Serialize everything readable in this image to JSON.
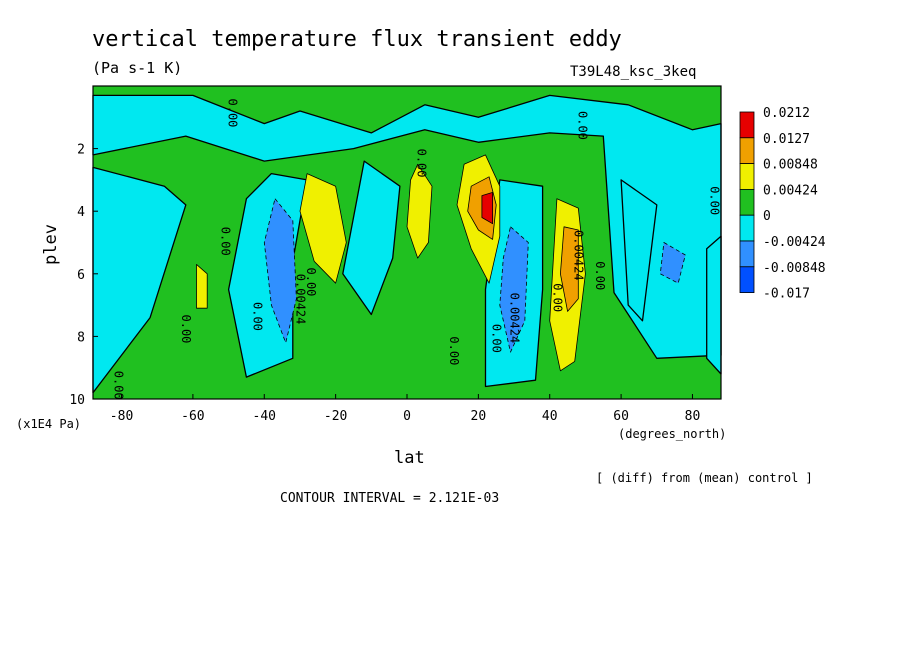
{
  "chart_data": {
    "type": "heatmap",
    "title": "vertical temperature flux transient eddy",
    "units": "(Pa s-1 K)",
    "run_label": "T39L48_ksc_3keq",
    "xlabel": "lat",
    "x_units": "(degrees_north)",
    "ylabel": "plev",
    "y_units": "(x1E4 Pa)",
    "x_ticks": [
      "-80",
      "-60",
      "-40",
      "-20",
      "0",
      "20",
      "40",
      "60",
      "80"
    ],
    "y_ticks": [
      "2",
      "4",
      "6",
      "8",
      "10"
    ],
    "xlim": [
      -88,
      88
    ],
    "ylim": [
      10,
      0
    ],
    "legend": {
      "levels": [
        "0.0212",
        "0.0127",
        "0.00848",
        "0.00424",
        "0",
        "-0.00424",
        "-0.00848",
        "-0.017"
      ],
      "colors": [
        "#e60000",
        "#f0a000",
        "#f0f000",
        "#20c020",
        "#00e8f0",
        "#3090ff",
        "#0050ff"
      ]
    },
    "contour_labels": [
      {
        "text": "0.00",
        "lat": -50,
        "plev": 0.4
      },
      {
        "text": "0.00",
        "lat": 48,
        "plev": 0.8
      },
      {
        "text": "0.00",
        "lat": 3,
        "plev": 2.0
      },
      {
        "text": "0.00",
        "lat": 85,
        "plev": 3.2
      },
      {
        "text": "0.00",
        "lat": -52,
        "plev": 4.5
      },
      {
        "text": "0.00424",
        "lat": -31,
        "plev": 6.0
      },
      {
        "text": "0.00",
        "lat": -28,
        "plev": 5.8
      },
      {
        "text": "0.00",
        "lat": -43,
        "plev": 6.9
      },
      {
        "text": "0.00",
        "lat": -63,
        "plev": 7.3
      },
      {
        "text": "0.00",
        "lat": -82,
        "plev": 9.1
      },
      {
        "text": "0.00",
        "lat": 41,
        "plev": 6.3
      },
      {
        "text": "0.00424",
        "lat": 29,
        "plev": 6.6
      },
      {
        "text": "0.00",
        "lat": 24,
        "plev": 7.6
      },
      {
        "text": "0.00",
        "lat": 12,
        "plev": 8.0
      },
      {
        "text": "0.00424",
        "lat": 47,
        "plev": 4.6
      },
      {
        "text": "0.00",
        "lat": 53,
        "plev": 5.6
      }
    ],
    "regions": [
      {
        "level": 5,
        "lon": [
          [
            -88,
            0.3
          ],
          [
            -60,
            0.3
          ],
          [
            -40,
            1.2
          ],
          [
            -30,
            0.8
          ],
          [
            -10,
            1.5
          ],
          [
            5,
            0.6
          ],
          [
            20,
            1.0
          ],
          [
            40,
            0.3
          ],
          [
            62,
            0.6
          ],
          [
            80,
            1.4
          ],
          [
            88,
            1.2
          ],
          [
            88,
            8.6
          ],
          [
            70,
            8.7
          ],
          [
            58,
            6.6
          ],
          [
            55,
            1.6
          ],
          [
            40,
            1.5
          ],
          [
            20,
            1.8
          ],
          [
            5,
            1.4
          ],
          [
            -15,
            2.0
          ],
          [
            -40,
            2.4
          ],
          [
            -62,
            1.6
          ],
          [
            -88,
            2.2
          ]
        ]
      },
      {
        "level": 5,
        "lon": [
          [
            -88,
            2.6
          ],
          [
            -68,
            3.2
          ],
          [
            -62,
            3.8
          ],
          [
            -72,
            7.4
          ],
          [
            -88,
            9.8
          ]
        ]
      },
      {
        "level": 5,
        "lon": [
          [
            -45,
            3.6
          ],
          [
            -38,
            2.8
          ],
          [
            -28,
            3.0
          ],
          [
            -32,
            5.6
          ],
          [
            -32,
            8.7
          ],
          [
            -45,
            9.3
          ],
          [
            -50,
            6.5
          ]
        ]
      },
      {
        "level": 5,
        "lon": [
          [
            -12,
            2.4
          ],
          [
            -2,
            3.2
          ],
          [
            -4,
            5.5
          ],
          [
            -10,
            7.3
          ],
          [
            -18,
            6.0
          ]
        ]
      },
      {
        "level": 5,
        "lon": [
          [
            26,
            3.0
          ],
          [
            38,
            3.2
          ],
          [
            38,
            6.5
          ],
          [
            36,
            9.4
          ],
          [
            22,
            9.6
          ],
          [
            22,
            6.5
          ]
        ]
      },
      {
        "level": 5,
        "lon": [
          [
            60,
            3.0
          ],
          [
            70,
            3.8
          ],
          [
            66,
            7.5
          ],
          [
            62,
            7.0
          ]
        ]
      },
      {
        "level": 5,
        "lon": [
          [
            84,
            5.2
          ],
          [
            88,
            4.8
          ],
          [
            88,
            9.2
          ],
          [
            84,
            8.7
          ]
        ]
      },
      {
        "level": 6,
        "lon": [
          [
            -37,
            3.6
          ],
          [
            -32,
            4.3
          ],
          [
            -31,
            6.8
          ],
          [
            -34,
            8.2
          ],
          [
            -38,
            7.0
          ],
          [
            -40,
            5.0
          ]
        ]
      },
      {
        "level": 6,
        "lon": [
          [
            29,
            4.5
          ],
          [
            34,
            5.0
          ],
          [
            33,
            7.5
          ],
          [
            29,
            8.5
          ],
          [
            26,
            7.0
          ],
          [
            27,
            5.5
          ]
        ]
      },
      {
        "level": 6,
        "lon": [
          [
            72,
            5.0
          ],
          [
            78,
            5.4
          ],
          [
            76,
            6.3
          ],
          [
            71,
            6.0
          ]
        ]
      },
      {
        "level": 3,
        "lon": [
          [
            -28,
            2.8
          ],
          [
            -20,
            3.2
          ],
          [
            -17,
            5.0
          ],
          [
            -20,
            6.3
          ],
          [
            -26,
            5.6
          ],
          [
            -30,
            4.0
          ]
        ]
      },
      {
        "level": 3,
        "lon": [
          [
            3,
            2.5
          ],
          [
            7,
            3.2
          ],
          [
            6,
            5.0
          ],
          [
            3,
            5.5
          ],
          [
            0,
            4.5
          ],
          [
            1,
            3.0
          ]
        ]
      },
      {
        "level": 3,
        "lon": [
          [
            16,
            2.5
          ],
          [
            22,
            2.2
          ],
          [
            26,
            3.2
          ],
          [
            26,
            4.8
          ],
          [
            23,
            6.3
          ],
          [
            18,
            5.2
          ],
          [
            14,
            3.8
          ]
        ]
      },
      {
        "level": 3,
        "lon": [
          [
            42,
            3.6
          ],
          [
            48,
            3.9
          ],
          [
            50,
            6.0
          ],
          [
            47,
            8.8
          ],
          [
            43,
            9.1
          ],
          [
            40,
            7.5
          ]
        ]
      },
      {
        "level": 3,
        "lon": [
          [
            -59,
            5.7
          ],
          [
            -56,
            6.0
          ],
          [
            -56,
            7.1
          ],
          [
            -59,
            7.1
          ]
        ]
      },
      {
        "level": 2,
        "lon": [
          [
            18,
            3.2
          ],
          [
            23,
            2.9
          ],
          [
            25,
            3.8
          ],
          [
            24,
            4.9
          ],
          [
            20,
            4.6
          ],
          [
            17,
            4.0
          ]
        ]
      },
      {
        "level": 2,
        "lon": [
          [
            44,
            4.5
          ],
          [
            48,
            4.6
          ],
          [
            48,
            6.8
          ],
          [
            45,
            7.2
          ],
          [
            43,
            6.0
          ]
        ]
      },
      {
        "level": 1,
        "lon": [
          [
            21,
            3.5
          ],
          [
            24,
            3.4
          ],
          [
            24,
            4.4
          ],
          [
            21,
            4.2
          ]
        ]
      }
    ]
  },
  "footer": {
    "diff_note": "[ (diff) from (mean) control ]",
    "contour_interval": "CONTOUR INTERVAL = 2.121E-03"
  }
}
